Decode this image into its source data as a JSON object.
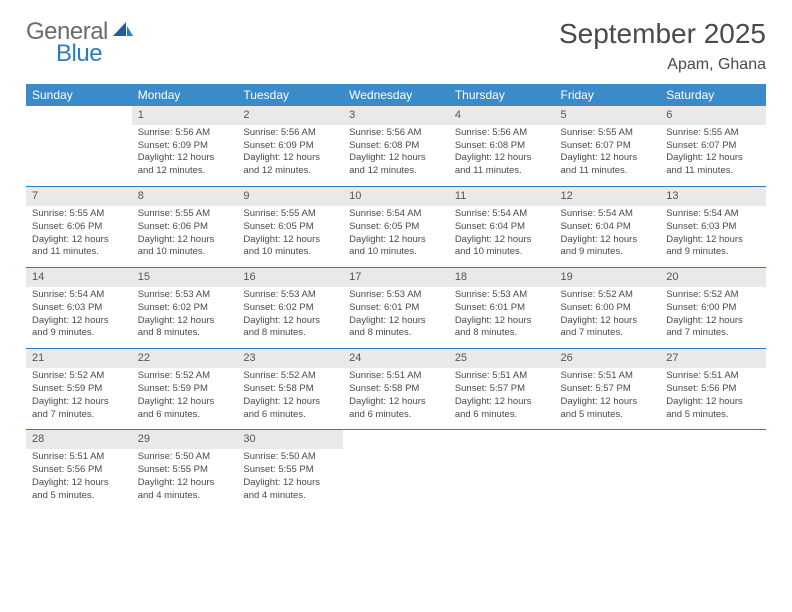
{
  "brand": {
    "general": "General",
    "blue": "Blue"
  },
  "colors": {
    "header_bg": "#3b8bc9",
    "header_text": "#ffffff",
    "daynum_bg": "#e9e9e9",
    "row_divider": "#2f7bbf",
    "logo_gray": "#6b6b6b",
    "logo_blue": "#2f7bbf",
    "text": "#4a4a4a",
    "page_bg": "#ffffff"
  },
  "typography": {
    "month_title_fontsize": 28,
    "location_fontsize": 16,
    "header_fontsize": 12,
    "daynum_fontsize": 11,
    "cell_fontsize": 9.5
  },
  "title": "September 2025",
  "location": "Apam, Ghana",
  "weekdays": [
    "Sunday",
    "Monday",
    "Tuesday",
    "Wednesday",
    "Thursday",
    "Friday",
    "Saturday"
  ],
  "weeks": [
    [
      {
        "n": "",
        "sr": "",
        "ss": "",
        "dl": ""
      },
      {
        "n": "1",
        "sr": "5:56 AM",
        "ss": "6:09 PM",
        "dl": "12 hours and 12 minutes."
      },
      {
        "n": "2",
        "sr": "5:56 AM",
        "ss": "6:09 PM",
        "dl": "12 hours and 12 minutes."
      },
      {
        "n": "3",
        "sr": "5:56 AM",
        "ss": "6:08 PM",
        "dl": "12 hours and 12 minutes."
      },
      {
        "n": "4",
        "sr": "5:56 AM",
        "ss": "6:08 PM",
        "dl": "12 hours and 11 minutes."
      },
      {
        "n": "5",
        "sr": "5:55 AM",
        "ss": "6:07 PM",
        "dl": "12 hours and 11 minutes."
      },
      {
        "n": "6",
        "sr": "5:55 AM",
        "ss": "6:07 PM",
        "dl": "12 hours and 11 minutes."
      }
    ],
    [
      {
        "n": "7",
        "sr": "5:55 AM",
        "ss": "6:06 PM",
        "dl": "12 hours and 11 minutes."
      },
      {
        "n": "8",
        "sr": "5:55 AM",
        "ss": "6:06 PM",
        "dl": "12 hours and 10 minutes."
      },
      {
        "n": "9",
        "sr": "5:55 AM",
        "ss": "6:05 PM",
        "dl": "12 hours and 10 minutes."
      },
      {
        "n": "10",
        "sr": "5:54 AM",
        "ss": "6:05 PM",
        "dl": "12 hours and 10 minutes."
      },
      {
        "n": "11",
        "sr": "5:54 AM",
        "ss": "6:04 PM",
        "dl": "12 hours and 10 minutes."
      },
      {
        "n": "12",
        "sr": "5:54 AM",
        "ss": "6:04 PM",
        "dl": "12 hours and 9 minutes."
      },
      {
        "n": "13",
        "sr": "5:54 AM",
        "ss": "6:03 PM",
        "dl": "12 hours and 9 minutes."
      }
    ],
    [
      {
        "n": "14",
        "sr": "5:54 AM",
        "ss": "6:03 PM",
        "dl": "12 hours and 9 minutes."
      },
      {
        "n": "15",
        "sr": "5:53 AM",
        "ss": "6:02 PM",
        "dl": "12 hours and 8 minutes."
      },
      {
        "n": "16",
        "sr": "5:53 AM",
        "ss": "6:02 PM",
        "dl": "12 hours and 8 minutes."
      },
      {
        "n": "17",
        "sr": "5:53 AM",
        "ss": "6:01 PM",
        "dl": "12 hours and 8 minutes."
      },
      {
        "n": "18",
        "sr": "5:53 AM",
        "ss": "6:01 PM",
        "dl": "12 hours and 8 minutes."
      },
      {
        "n": "19",
        "sr": "5:52 AM",
        "ss": "6:00 PM",
        "dl": "12 hours and 7 minutes."
      },
      {
        "n": "20",
        "sr": "5:52 AM",
        "ss": "6:00 PM",
        "dl": "12 hours and 7 minutes."
      }
    ],
    [
      {
        "n": "21",
        "sr": "5:52 AM",
        "ss": "5:59 PM",
        "dl": "12 hours and 7 minutes."
      },
      {
        "n": "22",
        "sr": "5:52 AM",
        "ss": "5:59 PM",
        "dl": "12 hours and 6 minutes."
      },
      {
        "n": "23",
        "sr": "5:52 AM",
        "ss": "5:58 PM",
        "dl": "12 hours and 6 minutes."
      },
      {
        "n": "24",
        "sr": "5:51 AM",
        "ss": "5:58 PM",
        "dl": "12 hours and 6 minutes."
      },
      {
        "n": "25",
        "sr": "5:51 AM",
        "ss": "5:57 PM",
        "dl": "12 hours and 6 minutes."
      },
      {
        "n": "26",
        "sr": "5:51 AM",
        "ss": "5:57 PM",
        "dl": "12 hours and 5 minutes."
      },
      {
        "n": "27",
        "sr": "5:51 AM",
        "ss": "5:56 PM",
        "dl": "12 hours and 5 minutes."
      }
    ],
    [
      {
        "n": "28",
        "sr": "5:51 AM",
        "ss": "5:56 PM",
        "dl": "12 hours and 5 minutes."
      },
      {
        "n": "29",
        "sr": "5:50 AM",
        "ss": "5:55 PM",
        "dl": "12 hours and 4 minutes."
      },
      {
        "n": "30",
        "sr": "5:50 AM",
        "ss": "5:55 PM",
        "dl": "12 hours and 4 minutes."
      },
      {
        "n": "",
        "sr": "",
        "ss": "",
        "dl": ""
      },
      {
        "n": "",
        "sr": "",
        "ss": "",
        "dl": ""
      },
      {
        "n": "",
        "sr": "",
        "ss": "",
        "dl": ""
      },
      {
        "n": "",
        "sr": "",
        "ss": "",
        "dl": ""
      }
    ]
  ],
  "labels": {
    "sunrise": "Sunrise:",
    "sunset": "Sunset:",
    "daylight": "Daylight:"
  }
}
